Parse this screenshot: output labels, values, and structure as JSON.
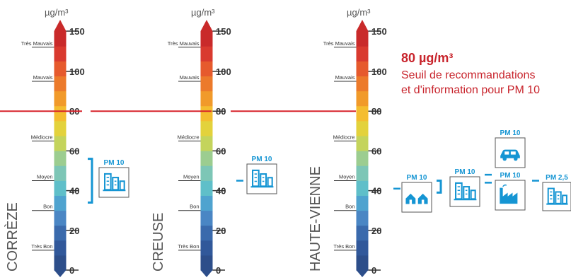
{
  "colors": {
    "threshold": "#d7232c",
    "accent": "#1595d3",
    "text": "#333333",
    "scale": [
      "#2d4e8a",
      "#31589a",
      "#3a6aac",
      "#4a86c4",
      "#4fa3cf",
      "#5fbfc9",
      "#7dc6b6",
      "#9ccd90",
      "#c4d45c",
      "#e3d23c",
      "#f4bd2f",
      "#f19a2a",
      "#ec7a2b",
      "#e65a2d",
      "#d93a2f",
      "#c92a2a"
    ]
  },
  "scale": {
    "unit": "µg/m³",
    "min": 0,
    "max": 150,
    "ticks": [
      0,
      20,
      40,
      60,
      80,
      100,
      150
    ],
    "qualitative": [
      {
        "label": "Très Bon",
        "value": 10
      },
      {
        "label": "Bon",
        "value": 30
      },
      {
        "label": "Moyen",
        "value": 45
      },
      {
        "label": "Médiocre",
        "value": 65
      },
      {
        "label": "Mauvais",
        "value": 95
      },
      {
        "label": "Très Mauvais",
        "value": 130
      }
    ]
  },
  "threshold": {
    "value": 80,
    "value_label": "80 µg/m³",
    "line1": "Seuil de recommandations",
    "line2": "et d'information pour PM 10"
  },
  "departments": [
    {
      "name": "CORRÈZE",
      "stations": [
        {
          "label": "PM 10",
          "icon": "urban-buildings-icon",
          "range": [
            34,
            56
          ]
        }
      ]
    },
    {
      "name": "CREUSE",
      "stations": [
        {
          "label": "PM 10",
          "icon": "urban-buildings-icon",
          "range": [
            45,
            45
          ]
        }
      ]
    },
    {
      "name": "HAUTE-VIENNE",
      "stations": [
        {
          "label": "PM 10",
          "icon": "houses-icon",
          "range": [
            41,
            41
          ]
        },
        {
          "label": "PM 10",
          "icon": "urban-buildings-icon",
          "range": [
            39,
            45
          ]
        },
        {
          "label": "PM 10",
          "icon": "car-icon",
          "range": [
            48,
            48
          ]
        },
        {
          "label": "PM 10",
          "icon": "factory-icon",
          "range": [
            44,
            44
          ]
        },
        {
          "label": "PM 2,5",
          "icon": "urban-buildings-icon",
          "range": [
            45,
            45
          ]
        }
      ]
    }
  ]
}
